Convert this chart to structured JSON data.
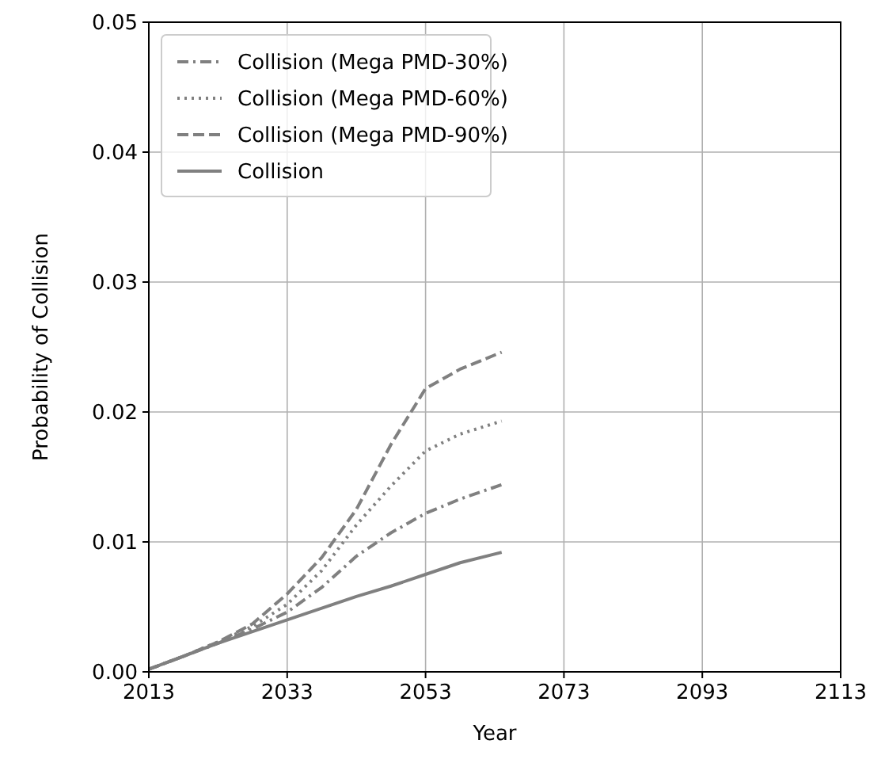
{
  "chart_data": {
    "type": "line",
    "xlabel": "Year",
    "ylabel": "Probability of Collision",
    "x": [
      2013,
      2018,
      2023,
      2028,
      2033,
      2038,
      2043,
      2048,
      2053,
      2058,
      2064
    ],
    "xlim": [
      2013,
      2113
    ],
    "xticks": [
      2013,
      2033,
      2053,
      2073,
      2093,
      2113
    ],
    "ylim": [
      0,
      0.05
    ],
    "yticks": [
      {
        "value": 0,
        "label": "0.00"
      },
      {
        "value": 0.01,
        "label": "0.01"
      },
      {
        "value": 0.02,
        "label": "0.02"
      },
      {
        "value": 0.03,
        "label": "0.03"
      },
      {
        "value": 0.04,
        "label": "0.04"
      },
      {
        "value": 0.05,
        "label": "0.05"
      }
    ],
    "grid": true,
    "legend": "top left",
    "series": [
      {
        "name": "Collision (Mega PMD-30%)",
        "color": "#808080",
        "line_style": "dashdot",
        "values": [
          0.0002,
          0.0012,
          0.0022,
          0.0033,
          0.0046,
          0.0065,
          0.0089,
          0.0107,
          0.0122,
          0.0133,
          0.0144
        ]
      },
      {
        "name": "Collision (Mega PMD-60%)",
        "color": "#808080",
        "line_style": "dotted",
        "values": [
          0.0002,
          0.0012,
          0.0023,
          0.0035,
          0.0052,
          0.0078,
          0.0113,
          0.0143,
          0.017,
          0.0183,
          0.0193
        ]
      },
      {
        "name": "Collision (Mega PMD-90%)",
        "color": "#808080",
        "line_style": "dashed",
        "values": [
          0.0002,
          0.0012,
          0.0023,
          0.0037,
          0.006,
          0.0088,
          0.0125,
          0.0175,
          0.0218,
          0.0233,
          0.0246
        ]
      },
      {
        "name": "Collision",
        "color": "#808080",
        "line_style": "solid",
        "values": [
          0.0002,
          0.0012,
          0.0022,
          0.0031,
          0.004,
          0.0049,
          0.0058,
          0.0066,
          0.0075,
          0.0084,
          0.0092
        ]
      }
    ]
  }
}
